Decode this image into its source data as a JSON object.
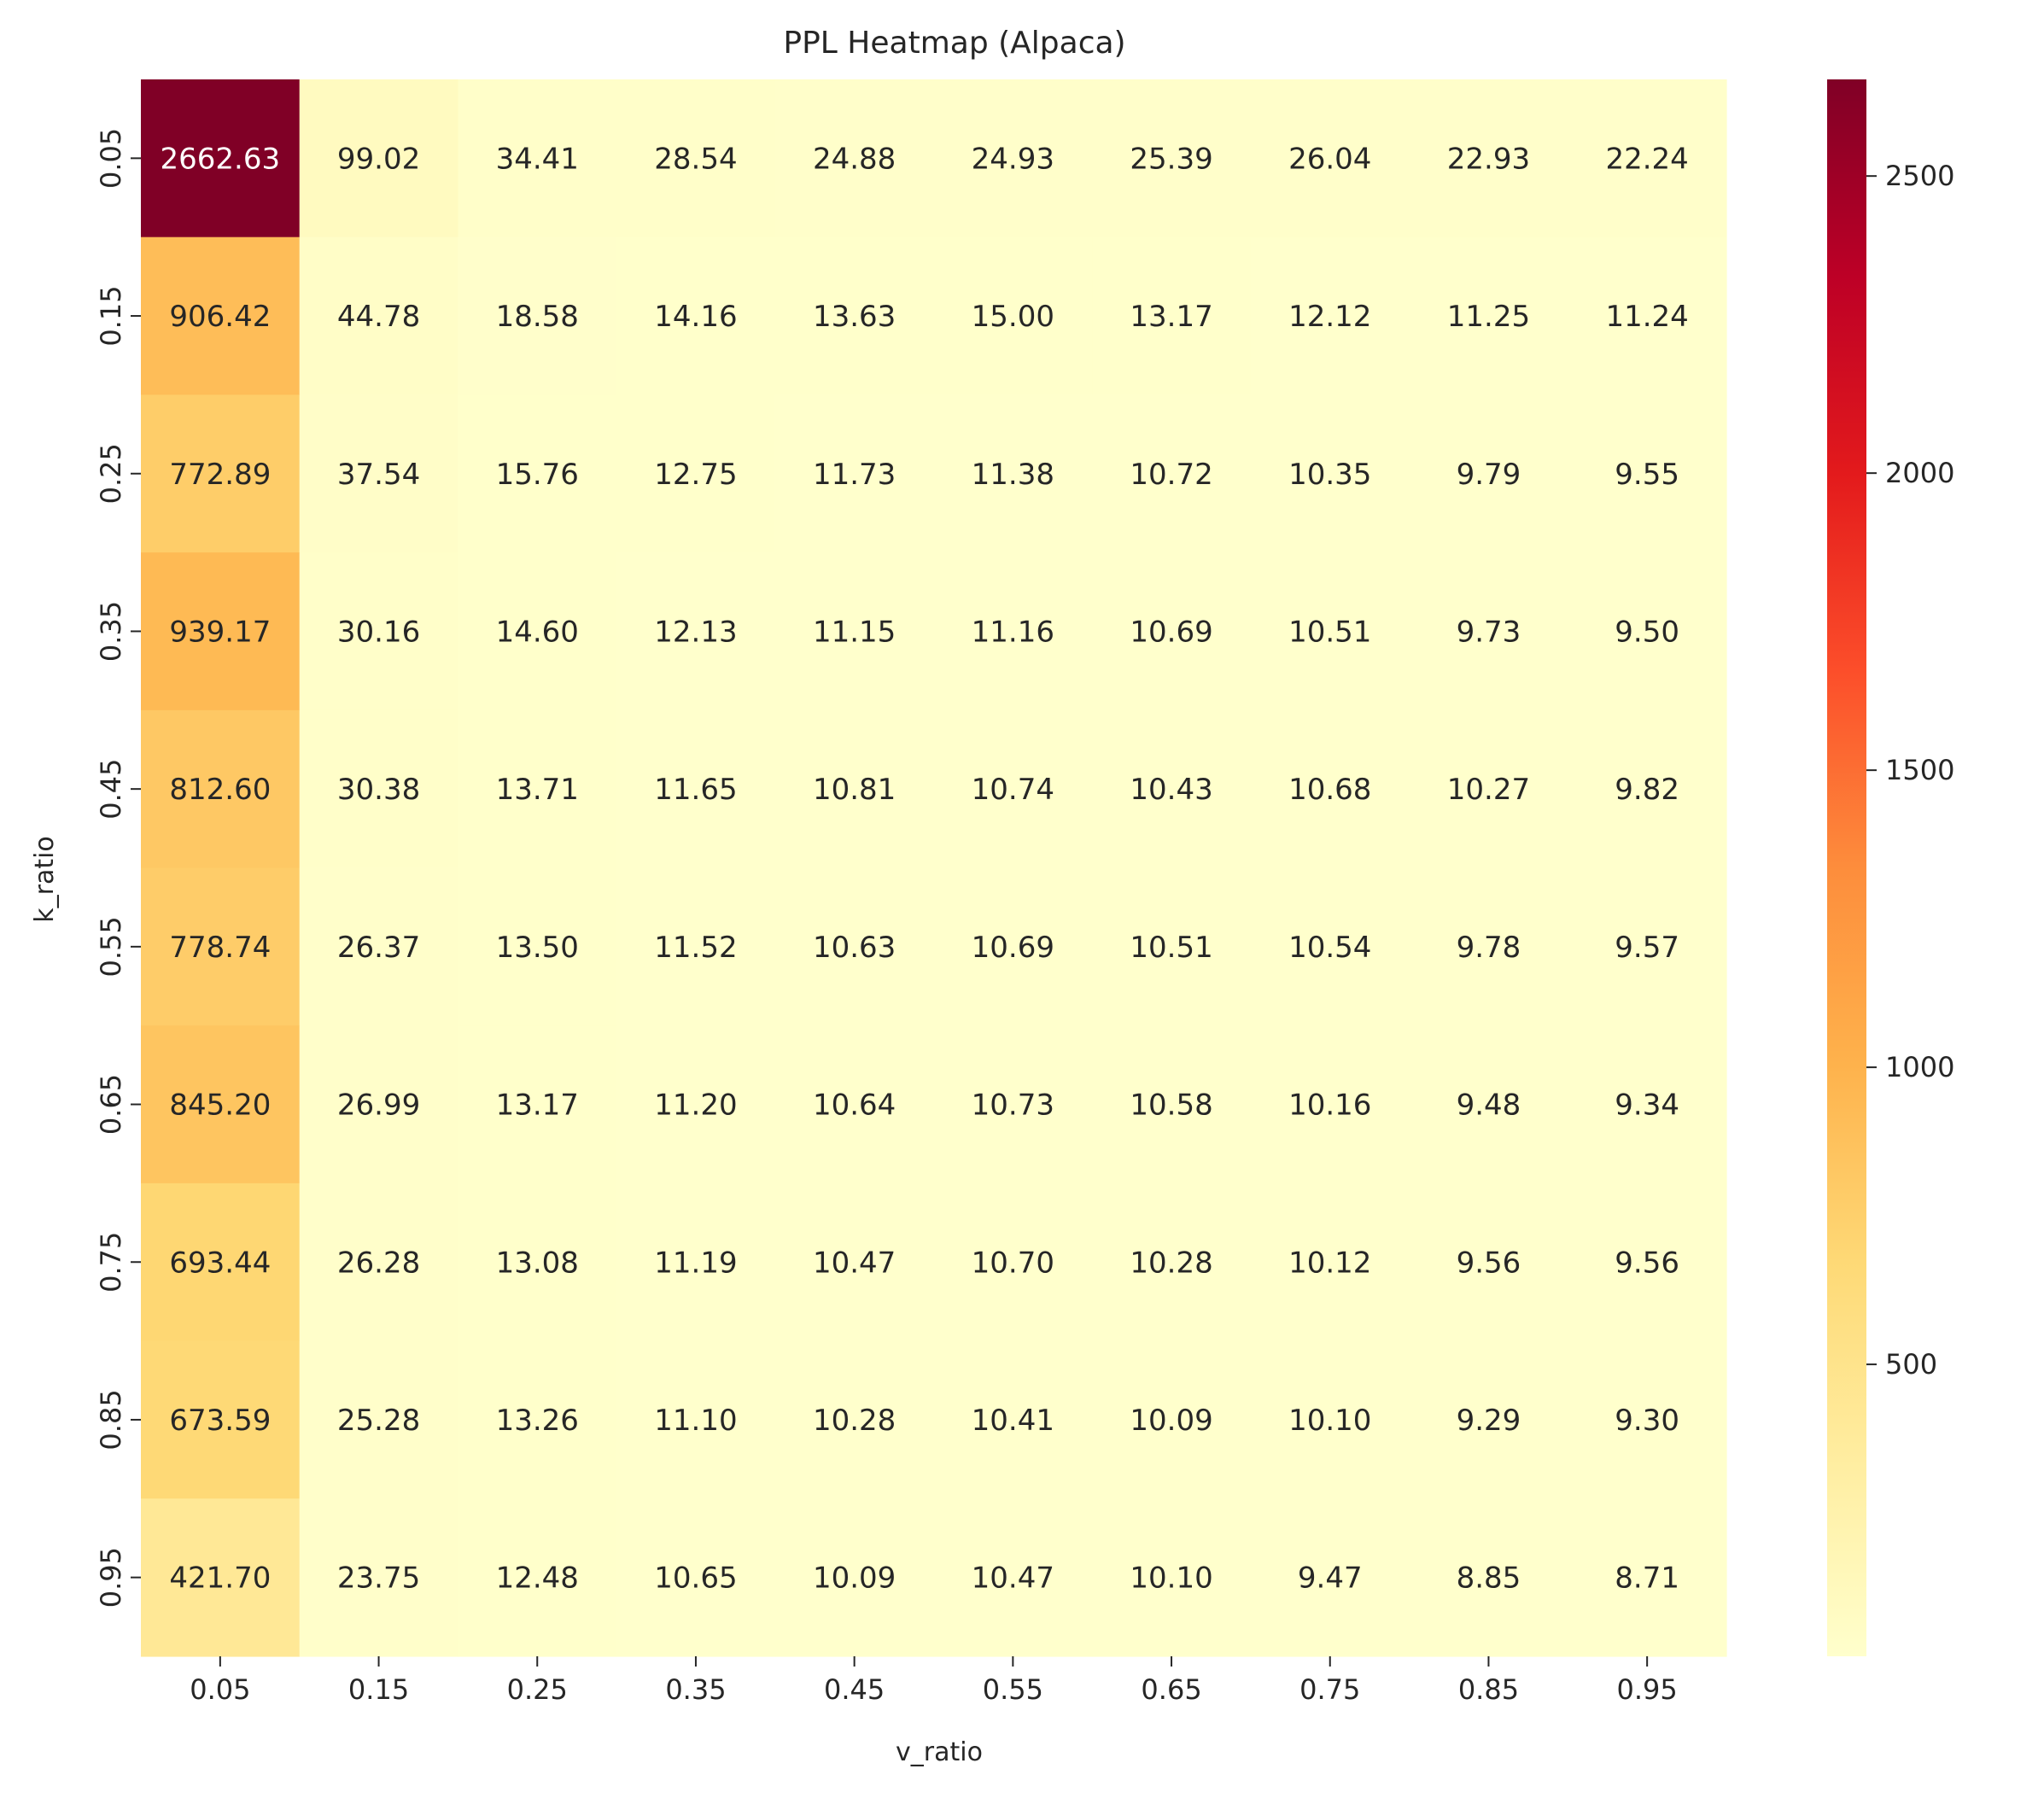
{
  "chart_data": {
    "type": "heatmap",
    "title": "PPL Heatmap (Alpaca)",
    "xlabel": "v_ratio",
    "ylabel": "k_ratio",
    "x_categories": [
      "0.05",
      "0.15",
      "0.25",
      "0.35",
      "0.45",
      "0.55",
      "0.65",
      "0.75",
      "0.85",
      "0.95"
    ],
    "y_categories": [
      "0.05",
      "0.15",
      "0.25",
      "0.35",
      "0.45",
      "0.55",
      "0.65",
      "0.75",
      "0.85",
      "0.95"
    ],
    "values": [
      [
        2662.63,
        99.02,
        34.41,
        28.54,
        24.88,
        24.93,
        25.39,
        26.04,
        22.93,
        22.24
      ],
      [
        906.42,
        44.78,
        18.58,
        14.16,
        13.63,
        15.0,
        13.17,
        12.12,
        11.25,
        11.24
      ],
      [
        772.89,
        37.54,
        15.76,
        12.75,
        11.73,
        11.38,
        10.72,
        10.35,
        9.79,
        9.55
      ],
      [
        939.17,
        30.16,
        14.6,
        12.13,
        11.15,
        11.16,
        10.69,
        10.51,
        9.73,
        9.5
      ],
      [
        812.6,
        30.38,
        13.71,
        11.65,
        10.81,
        10.74,
        10.43,
        10.68,
        10.27,
        9.82
      ],
      [
        778.74,
        26.37,
        13.5,
        11.52,
        10.63,
        10.69,
        10.51,
        10.54,
        9.78,
        9.57
      ],
      [
        845.2,
        26.99,
        13.17,
        11.2,
        10.64,
        10.73,
        10.58,
        10.16,
        9.48,
        9.34
      ],
      [
        693.44,
        26.28,
        13.08,
        11.19,
        10.47,
        10.7,
        10.28,
        10.12,
        9.56,
        9.56
      ],
      [
        673.59,
        25.28,
        13.26,
        11.1,
        10.28,
        10.41,
        10.09,
        10.1,
        9.29,
        9.3
      ],
      [
        421.7,
        23.75,
        12.48,
        10.65,
        10.09,
        10.47,
        10.1,
        9.47,
        8.85,
        8.71
      ]
    ],
    "value_format": "2 decimals",
    "colormap": "YlOrRd",
    "color_range": [
      8.71,
      2662.63
    ],
    "colorbar_ticks": [
      500,
      1000,
      1500,
      2000,
      2500
    ],
    "annotation_text_colors": {
      "dark_cell": "#ffffff",
      "light_cell": "#262626"
    },
    "grid": false,
    "legend": "colorbar right"
  }
}
